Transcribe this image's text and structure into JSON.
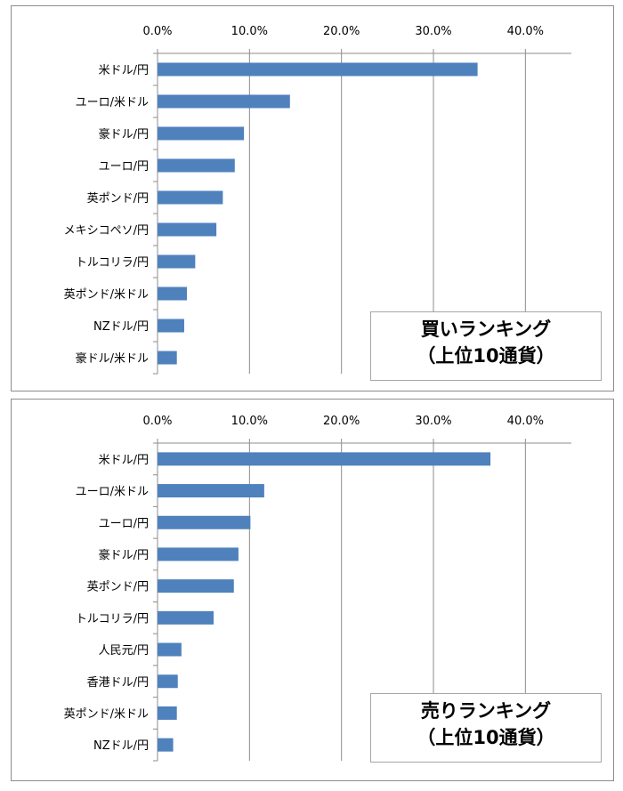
{
  "chart_data": [
    {
      "type": "bar",
      "orientation": "horizontal",
      "categories": [
        "米ドル/円",
        "ユーロ/米ドル",
        "豪ドル/円",
        "ユーロ/円",
        "英ポンド/円",
        "メキシコペソ/円",
        "トルコリラ/円",
        "英ポンド/米ドル",
        "NZドル/円",
        "豪ドル/米ドル"
      ],
      "values": [
        34.8,
        14.4,
        9.4,
        8.4,
        7.1,
        6.4,
        4.1,
        3.2,
        2.9,
        2.1
      ],
      "xlim": [
        0,
        45
      ],
      "xticks": [
        "0.0%",
        "10.0%",
        "20.0%",
        "30.0%",
        "40.0%"
      ],
      "x_axis_position": "top",
      "grid": true,
      "color": "#4f81bd",
      "legend_title": "買いランキング",
      "legend_subtitle": "（上位10通貨）",
      "legend_position": "bottom-right"
    },
    {
      "type": "bar",
      "orientation": "horizontal",
      "categories": [
        "米ドル/円",
        "ユーロ/米ドル",
        "ユーロ/円",
        "豪ドル/円",
        "英ポンド/円",
        "トルコリラ/円",
        "人民元/円",
        "香港ドル/円",
        "英ポンド/米ドル",
        "NZドル/円"
      ],
      "values": [
        36.2,
        11.6,
        10.1,
        8.8,
        8.3,
        6.1,
        2.6,
        2.2,
        2.1,
        1.7
      ],
      "xlim": [
        0,
        45
      ],
      "xticks": [
        "0.0%",
        "10.0%",
        "20.0%",
        "30.0%",
        "40.0%"
      ],
      "x_axis_position": "top",
      "grid": true,
      "color": "#4f81bd",
      "legend_title": "売りランキング",
      "legend_subtitle": "（上位10通貨）",
      "legend_position": "bottom-right"
    }
  ]
}
